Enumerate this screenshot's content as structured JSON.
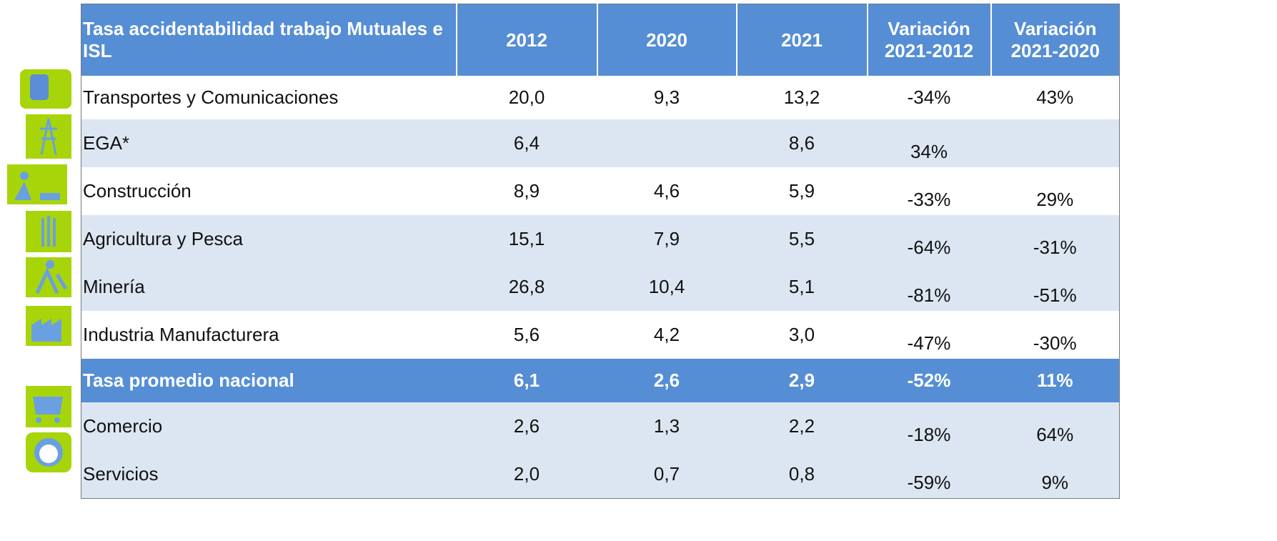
{
  "table": {
    "header": [
      "Tasa accidentabilidad trabajo Mutuales e ISL",
      "2012",
      "2020",
      "2021",
      "Variación 2021-2012",
      "Variación 2021-2020"
    ],
    "rows": [
      [
        "Transportes y Comunicaciones",
        "20,0",
        "9,3",
        "13,2",
        "-34%",
        "43%"
      ],
      [
        "EGA*",
        "6,4",
        null,
        "8,6",
        "34%",
        null
      ],
      [
        "Construcción",
        "8,9",
        "4,6",
        "5,9",
        "-33%",
        "29%"
      ],
      [
        "Agricultura y Pesca",
        "15,1",
        "7,9",
        "5,5",
        "-64%",
        "-31%"
      ],
      [
        "Minería",
        "26,8",
        "10,4",
        "5,1",
        "-81%",
        "-51%"
      ],
      [
        "Industria Manufacturera",
        "5,6",
        "4,2",
        "3,0",
        "-47%",
        "-30%"
      ],
      [
        "Tasa promedio nacional",
        "6,1",
        "2,6",
        "2,9",
        "-52%",
        "11%"
      ],
      [
        "Comercio",
        "2,6",
        "1,3",
        "2,2",
        "-18%",
        "64%"
      ],
      [
        "Servicios",
        "2,0",
        "0,7",
        "0,8",
        "-59%",
        "9%"
      ]
    ]
  }
}
